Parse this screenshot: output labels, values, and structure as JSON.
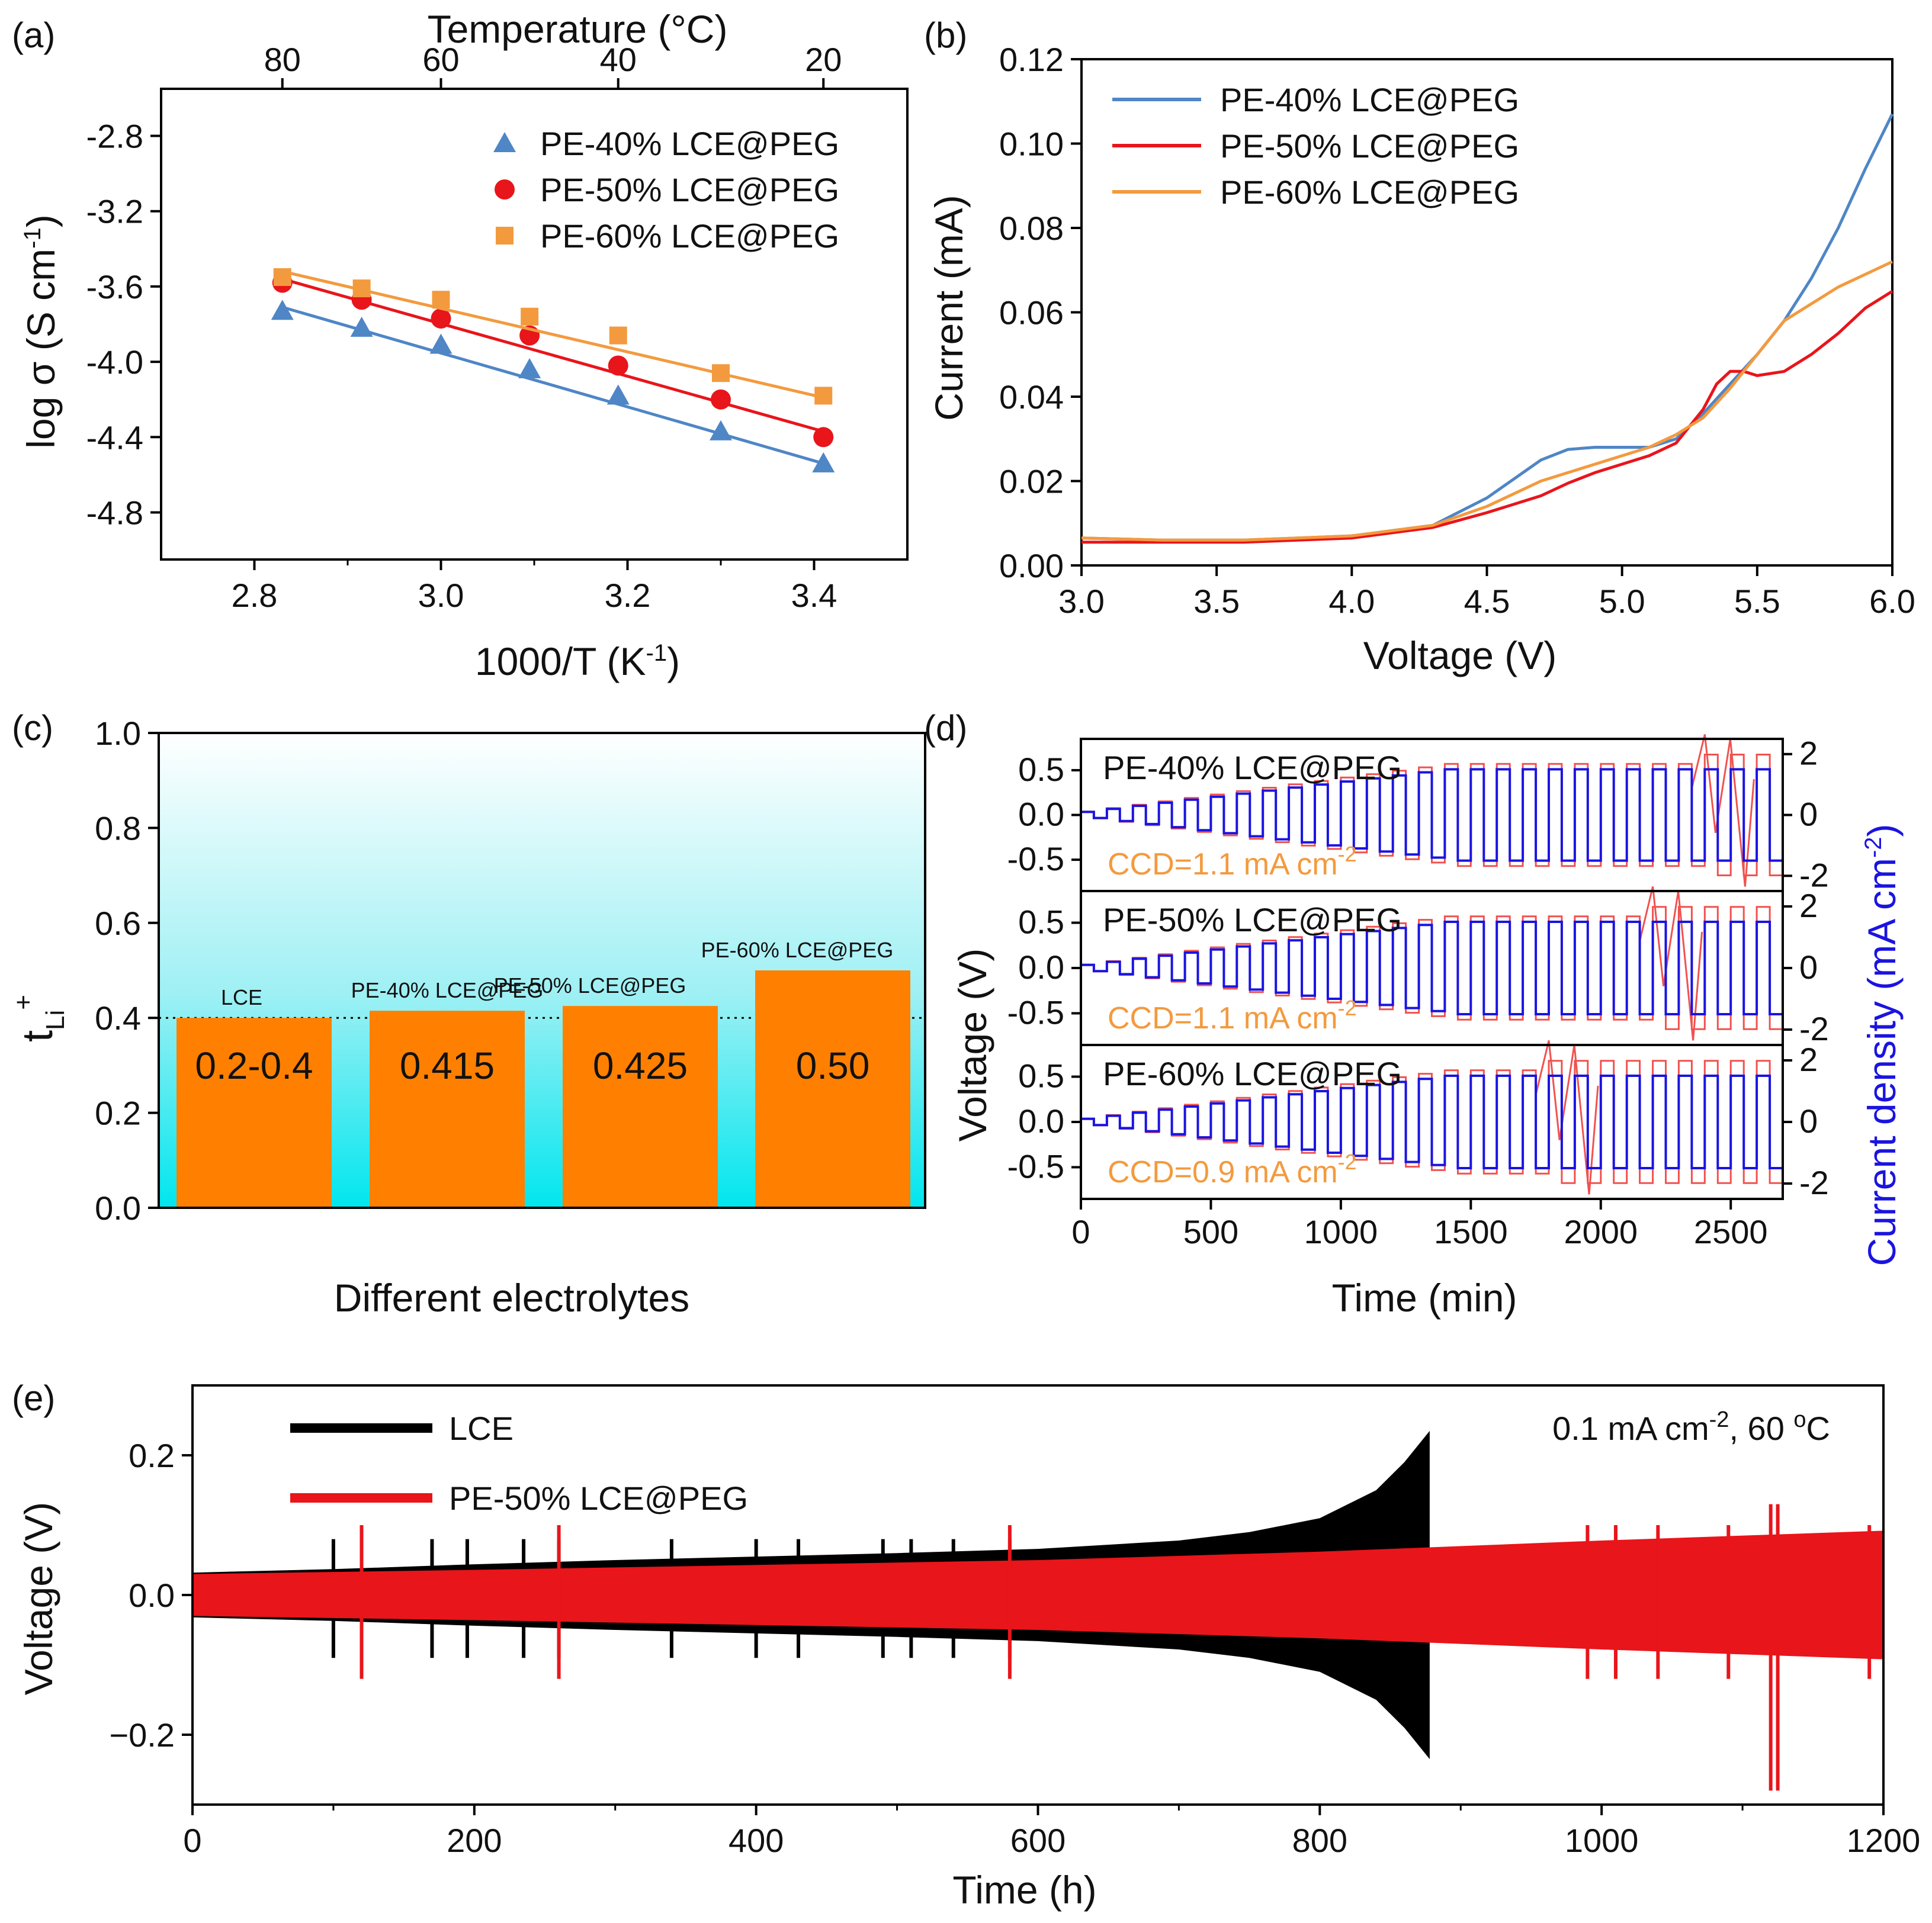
{
  "colors": {
    "pe40": "#4f86c6",
    "pe50": "#e8151b",
    "pe60": "#f39a3e",
    "bar": "#ff8000",
    "current": "#1a14e0",
    "lce": "#000000",
    "ccd_text": "#f39a3e"
  },
  "chart_data": [
    {
      "id": "a",
      "panel_label": "(a)",
      "type": "scatter",
      "xlabel": "1000/T (K",
      "xlabel_sup": "-1",
      "xlabel_end": ")",
      "ylabel": "log σ (S cm",
      "ylabel_sup": "-1",
      "ylabel_end": ")",
      "top_axis_label": "Temperature (°C)",
      "xlim": [
        2.7,
        3.5
      ],
      "ylim": [
        -5.05,
        -2.55
      ],
      "xticks": [
        "2.8",
        "3.0",
        "3.2",
        "3.4"
      ],
      "yticks": [
        "-2.8",
        "-3.2",
        "-3.6",
        "-4.0",
        "-4.4",
        "-4.8"
      ],
      "top_ticks": [
        {
          "label": "80",
          "x": 2.83
        },
        {
          "label": "60",
          "x": 3.0
        },
        {
          "label": "40",
          "x": 3.19
        },
        {
          "label": "20",
          "x": 3.41
        }
      ],
      "series": [
        {
          "name": "PE-40% LCE@PEG",
          "marker": "triangle",
          "color_key": "pe40",
          "x": [
            2.83,
            2.915,
            3.0,
            3.095,
            3.19,
            3.3,
            3.41
          ],
          "y": [
            -3.73,
            -3.82,
            -3.91,
            -4.04,
            -4.18,
            -4.37,
            -4.54
          ],
          "fit": [
            [
              2.83,
              -3.71
            ],
            [
              3.41,
              -4.54
            ]
          ]
        },
        {
          "name": "PE-50% LCE@PEG",
          "marker": "circle",
          "color_key": "pe50",
          "x": [
            2.83,
            2.915,
            3.0,
            3.095,
            3.19,
            3.3,
            3.41
          ],
          "y": [
            -3.58,
            -3.67,
            -3.77,
            -3.86,
            -4.02,
            -4.2,
            -4.4
          ],
          "fit": [
            [
              2.83,
              -3.56
            ],
            [
              3.41,
              -4.37
            ]
          ]
        },
        {
          "name": "PE-60% LCE@PEG",
          "marker": "square",
          "color_key": "pe60",
          "x": [
            2.83,
            2.915,
            3.0,
            3.095,
            3.19,
            3.3,
            3.41
          ],
          "y": [
            -3.55,
            -3.61,
            -3.67,
            -3.76,
            -3.86,
            -4.06,
            -4.18
          ],
          "fit": [
            [
              2.83,
              -3.52
            ],
            [
              3.41,
              -4.19
            ]
          ]
        }
      ],
      "legend_position": "top-right"
    },
    {
      "id": "b",
      "panel_label": "(b)",
      "type": "line",
      "xlabel": "Voltage (V)",
      "ylabel": "Current (mA)",
      "xlim": [
        3.0,
        6.0
      ],
      "ylim": [
        0.0,
        0.12
      ],
      "xticks": [
        "3.0",
        "3.5",
        "4.0",
        "4.5",
        "5.0",
        "5.5",
        "6.0"
      ],
      "yticks": [
        "0.00",
        "0.02",
        "0.04",
        "0.06",
        "0.08",
        "0.10",
        "0.12"
      ],
      "series": [
        {
          "name": "PE-40% LCE@PEG",
          "color_key": "pe40",
          "x": [
            3.0,
            3.3,
            3.6,
            4.0,
            4.3,
            4.5,
            4.7,
            4.8,
            4.9,
            5.0,
            5.1,
            5.2,
            5.3,
            5.4,
            5.5,
            5.6,
            5.7,
            5.8,
            5.9,
            6.0
          ],
          "y": [
            0.0065,
            0.006,
            0.006,
            0.007,
            0.0095,
            0.016,
            0.025,
            0.0275,
            0.028,
            0.028,
            0.028,
            0.03,
            0.036,
            0.043,
            0.05,
            0.058,
            0.068,
            0.08,
            0.094,
            0.107
          ]
        },
        {
          "name": "PE-50% LCE@PEG",
          "color_key": "pe50",
          "x": [
            3.0,
            3.3,
            3.6,
            4.0,
            4.3,
            4.5,
            4.7,
            4.8,
            4.9,
            5.0,
            5.1,
            5.2,
            5.3,
            5.35,
            5.4,
            5.45,
            5.5,
            5.6,
            5.7,
            5.8,
            5.9,
            6.0
          ],
          "y": [
            0.0055,
            0.0055,
            0.0055,
            0.0065,
            0.009,
            0.0125,
            0.0165,
            0.0195,
            0.022,
            0.024,
            0.026,
            0.029,
            0.037,
            0.043,
            0.046,
            0.046,
            0.045,
            0.046,
            0.05,
            0.055,
            0.061,
            0.065
          ]
        },
        {
          "name": "PE-60% LCE@PEG",
          "color_key": "pe60",
          "x": [
            3.0,
            3.3,
            3.6,
            4.0,
            4.3,
            4.5,
            4.7,
            4.8,
            4.9,
            5.0,
            5.1,
            5.2,
            5.3,
            5.4,
            5.5,
            5.6,
            5.7,
            5.8,
            5.9,
            6.0
          ],
          "y": [
            0.0065,
            0.006,
            0.006,
            0.007,
            0.0095,
            0.014,
            0.02,
            0.022,
            0.024,
            0.026,
            0.028,
            0.031,
            0.035,
            0.042,
            0.05,
            0.058,
            0.062,
            0.066,
            0.069,
            0.072
          ]
        }
      ],
      "legend_position": "top-left"
    },
    {
      "id": "c",
      "panel_label": "(c)",
      "type": "bar",
      "xlabel": "Different electrolytes",
      "ylabel": "t",
      "ylabel_sub": "Li",
      "ylabel_sup": "+",
      "ylim": [
        0.0,
        1.0
      ],
      "yticks": [
        "0.0",
        "0.2",
        "0.4",
        "0.6",
        "0.8",
        "1.0"
      ],
      "reference_line": 0.4,
      "categories": [
        "LCE",
        "PE-40% LCE@PEG",
        "PE-50% LCE@PEG",
        "PE-60% LCE@PEG"
      ],
      "values": [
        0.4,
        0.415,
        0.425,
        0.5
      ],
      "value_labels": [
        "0.2-0.4",
        "0.415",
        "0.425",
        "0.50"
      ]
    },
    {
      "id": "d",
      "panel_label": "(d)",
      "type": "line",
      "xlabel": "Time (min)",
      "ylabel": "Voltage (V)",
      "y2label": "Current density (mA cm",
      "y2label_sup": "-2",
      "y2label_end": ")",
      "xlim": [
        0,
        2700
      ],
      "ylim": [
        -0.85,
        0.85
      ],
      "y2lim": [
        -2.5,
        2.5
      ],
      "xticks": [
        "0",
        "500",
        "1000",
        "1500",
        "2000",
        "2500"
      ],
      "yticks": [
        "0.5",
        "0.0",
        "-0.5"
      ],
      "y2ticks": [
        "2",
        "0",
        "-2"
      ],
      "subplots": [
        {
          "name": "PE-40% LCE@PEG",
          "ccd": "CCD=1.1 mA cm",
          "ccd_sup": "-2",
          "steps": 20,
          "short": 2350
        },
        {
          "name": "PE-50% LCE@PEG",
          "ccd": "CCD=1.1 mA cm",
          "ccd_sup": "-2",
          "steps": 20,
          "short": 2150
        },
        {
          "name": "PE-60% LCE@PEG",
          "ccd": "CCD=0.9 mA cm",
          "ccd_sup": "-2",
          "steps": 20,
          "short": 1750
        }
      ],
      "current_step_ma": 0.1,
      "step_period_min": 100
    },
    {
      "id": "e",
      "panel_label": "(e)",
      "type": "area",
      "xlabel": "Time (h)",
      "ylabel": "Voltage (V)",
      "xlim": [
        0,
        1200
      ],
      "ylim": [
        -0.3,
        0.3
      ],
      "xticks": [
        "0",
        "200",
        "400",
        "600",
        "800",
        "1000",
        "1200"
      ],
      "yticks": [
        "0.2",
        "0.0",
        "−0.2"
      ],
      "annotation": "0.1 mA cm",
      "annotation_sup": "-2",
      "annotation_mid": ",  60 ",
      "annotation_sup2": "o",
      "annotation_end": "C",
      "series": [
        {
          "name": "LCE",
          "color_key": "lce",
          "t": [
            0,
            100,
            200,
            300,
            400,
            500,
            600,
            700,
            750,
            800,
            840,
            860,
            878
          ],
          "v": [
            0.032,
            0.037,
            0.044,
            0.05,
            0.055,
            0.06,
            0.066,
            0.078,
            0.09,
            0.11,
            0.15,
            0.19,
            0.235
          ],
          "end_h": 878
        },
        {
          "name": "PE-50% LCE@PEG",
          "color_key": "pe50",
          "t": [
            0,
            200,
            400,
            600,
            800,
            1000,
            1200
          ],
          "v": [
            0.03,
            0.036,
            0.043,
            0.05,
            0.062,
            0.078,
            0.092
          ],
          "end_h": 1200
        }
      ],
      "spikes_lce": [
        100,
        170,
        195,
        235,
        260,
        340,
        400,
        430,
        490,
        510,
        540,
        580
      ],
      "spikes_pe": [
        120,
        260,
        580,
        990,
        1010,
        1040,
        1090,
        1120,
        1125,
        1190
      ]
    }
  ]
}
